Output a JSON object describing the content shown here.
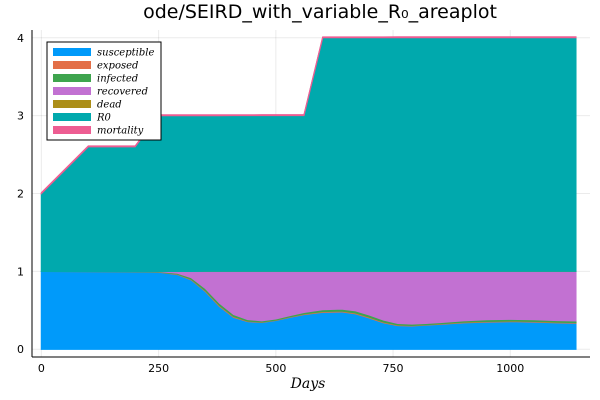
{
  "chart_data": {
    "type": "area",
    "title": "ode/SEIRD_with_variable_R₀_areaplot",
    "xlabel": "Days",
    "ylabel": "",
    "xlim": [
      -20,
      1170
    ],
    "ylim": [
      -0.1,
      4.1
    ],
    "xticks": [
      0,
      250,
      500,
      750,
      1000
    ],
    "yticks": [
      0,
      1,
      2,
      3,
      4
    ],
    "grid": true,
    "legend_position": "top-left",
    "x": [
      0,
      100,
      200,
      250,
      290,
      320,
      350,
      380,
      410,
      440,
      470,
      500,
      530,
      560,
      600,
      640,
      670,
      700,
      730,
      760,
      790,
      820,
      850,
      900,
      950,
      1000,
      1050,
      1100,
      1140
    ],
    "series": [
      {
        "name": "susceptible",
        "color": "#009AFA",
        "values": [
          1.0,
          0.998,
          0.995,
          0.99,
          0.96,
          0.89,
          0.74,
          0.55,
          0.41,
          0.355,
          0.345,
          0.37,
          0.41,
          0.445,
          0.475,
          0.48,
          0.455,
          0.4,
          0.34,
          0.305,
          0.3,
          0.31,
          0.32,
          0.34,
          0.35,
          0.355,
          0.35,
          0.34,
          0.335
        ]
      },
      {
        "name": "exposed",
        "color": "#E36F47",
        "values": [
          0.0,
          0.0005,
          0.001,
          0.002,
          0.005,
          0.008,
          0.011,
          0.012,
          0.01,
          0.007,
          0.005,
          0.005,
          0.006,
          0.008,
          0.009,
          0.01,
          0.011,
          0.011,
          0.009,
          0.007,
          0.006,
          0.006,
          0.006,
          0.007,
          0.008,
          0.008,
          0.008,
          0.008,
          0.008
        ]
      },
      {
        "name": "infected",
        "color": "#3EA44E",
        "values": [
          0.0,
          0.001,
          0.003,
          0.006,
          0.012,
          0.02,
          0.028,
          0.03,
          0.027,
          0.02,
          0.015,
          0.014,
          0.016,
          0.02,
          0.024,
          0.026,
          0.028,
          0.028,
          0.025,
          0.02,
          0.017,
          0.016,
          0.017,
          0.019,
          0.021,
          0.022,
          0.022,
          0.021,
          0.021
        ]
      },
      {
        "name": "recovered",
        "color": "#C271D2",
        "values": [
          0.0,
          0.0005,
          0.001,
          0.002,
          0.023,
          0.082,
          0.221,
          0.408,
          0.553,
          0.618,
          0.635,
          0.611,
          0.568,
          0.527,
          0.492,
          0.484,
          0.506,
          0.561,
          0.626,
          0.668,
          0.677,
          0.668,
          0.657,
          0.634,
          0.621,
          0.615,
          0.62,
          0.631,
          0.636
        ]
      },
      {
        "name": "dead",
        "color": "#AC8E18",
        "values": [
          0.0,
          0.0,
          0.0,
          0.0,
          0.0001,
          0.0002,
          0.0004,
          0.0006,
          0.0008,
          0.0009,
          0.001,
          0.001,
          0.001,
          0.001,
          0.001,
          0.001,
          0.001,
          0.0011,
          0.0012,
          0.0013,
          0.0013,
          0.0013,
          0.0013,
          0.0013,
          0.0013,
          0.0013,
          0.0013,
          0.0013,
          0.0013
        ]
      },
      {
        "name": "R0",
        "color": "#00A9AD",
        "values": [
          1.0,
          1.6,
          1.6,
          2.0,
          2.0,
          2.0,
          2.0,
          2.0,
          2.0,
          2.0,
          2.0,
          2.0,
          2.0,
          2.0,
          3.0,
          3.0,
          3.0,
          3.0,
          3.0,
          3.0,
          3.0,
          3.0,
          3.0,
          3.0,
          3.0,
          3.0,
          3.0,
          3.0,
          3.0
        ]
      },
      {
        "name": "mortality",
        "color": "#ED5D92",
        "values": [
          0.01,
          0.01,
          0.01,
          0.01,
          0.01,
          0.01,
          0.01,
          0.01,
          0.01,
          0.01,
          0.01,
          0.01,
          0.01,
          0.01,
          0.01,
          0.01,
          0.01,
          0.01,
          0.01,
          0.01,
          0.01,
          0.01,
          0.01,
          0.01,
          0.01,
          0.01,
          0.01,
          0.01,
          0.01
        ]
      }
    ]
  }
}
